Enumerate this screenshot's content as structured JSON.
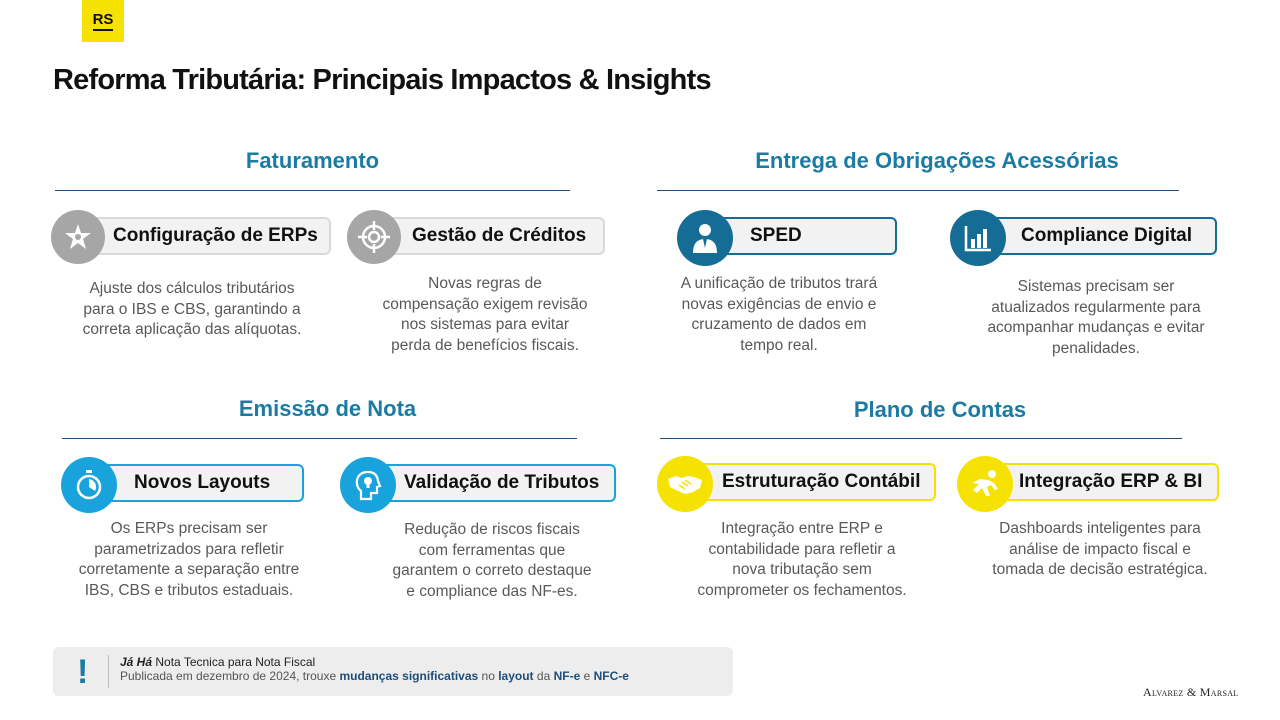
{
  "logo": {
    "text": "RS"
  },
  "title": "Reforma Tributária: Principais Impactos & Insights",
  "sections": {
    "faturamento": {
      "title": "Faturamento"
    },
    "obrigacoes": {
      "title": "Entrega de Obrigações Acessórias"
    },
    "emissao": {
      "title": "Emissão de Nota"
    },
    "plano": {
      "title": "Plano de Contas"
    }
  },
  "cards": {
    "erp_config": {
      "label": "Configuração de ERPs",
      "icon": "puzzle-star-icon",
      "desc": [
        "Ajuste dos cálculos tributários",
        "para o IBS e CBS, garantindo a",
        "correta aplicação das alíquotas."
      ]
    },
    "creditos": {
      "label": "Gestão de Créditos",
      "icon": "target-icon",
      "desc": [
        "Novas regras de",
        "compensação exigem revisão",
        "nos sistemas para evitar",
        "perda de benefícios fiscais."
      ]
    },
    "sped": {
      "label": "SPED",
      "icon": "businessman-icon",
      "desc": [
        "A unificação de tributos trará",
        "novas exigências de envio e",
        "cruzamento de dados em",
        "tempo real."
      ]
    },
    "compliance": {
      "label": "Compliance Digital",
      "icon": "bar-chart-icon",
      "desc": [
        "Sistemas precisam ser",
        "atualizados regularmente para",
        "acompanhar mudanças e evitar",
        "penalidades."
      ]
    },
    "layouts": {
      "label": "Novos Layouts",
      "icon": "stopwatch-icon",
      "desc": [
        "Os ERPs precisam ser",
        "parametrizados para refletir",
        "corretamente a separação entre",
        "IBS, CBS e tributos estaduais."
      ]
    },
    "validacao": {
      "label": "Validação de Tributos",
      "icon": "head-lightbulb-icon",
      "desc": [
        "Redução de riscos fiscais",
        "com ferramentas que",
        "garantem o correto destaque",
        "e compliance das NF-es."
      ]
    },
    "estruturacao": {
      "label": "Estruturação Contábil",
      "icon": "handshake-icon",
      "desc": [
        "Integração entre ERP e",
        "contabilidade para refletir a",
        "nova tributação sem",
        "comprometer os fechamentos."
      ]
    },
    "integracao": {
      "label": "Integração ERP & BI",
      "icon": "runner-icon",
      "desc": [
        "Dashboards inteligentes para",
        "análise de impacto fiscal e",
        "tomada de decisão estratégica."
      ]
    }
  },
  "note": {
    "icon": "exclamation-icon",
    "heading_bold": "Já Há",
    "heading_rest": " Nota Tecnica para Nota Fiscal",
    "l2_a": "Publicada em dezembro de 2024, trouxe ",
    "l2_b": "mudanças significativas",
    "l2_c": " no ",
    "l2_d": "layout",
    "l2_e": " da ",
    "l2_f": "NF-e",
    "l2_g": " e ",
    "l2_h": "NFC-e"
  },
  "brand": "Alvarez & Marsal",
  "colors": {
    "accent_blue": "#1b7ba3",
    "dark_blue": "#1f4e79",
    "teal_icon": "#156d96",
    "light_blue": "#19a3dd",
    "yellow": "#f6e200",
    "gray_icon": "#a6a6a6"
  }
}
